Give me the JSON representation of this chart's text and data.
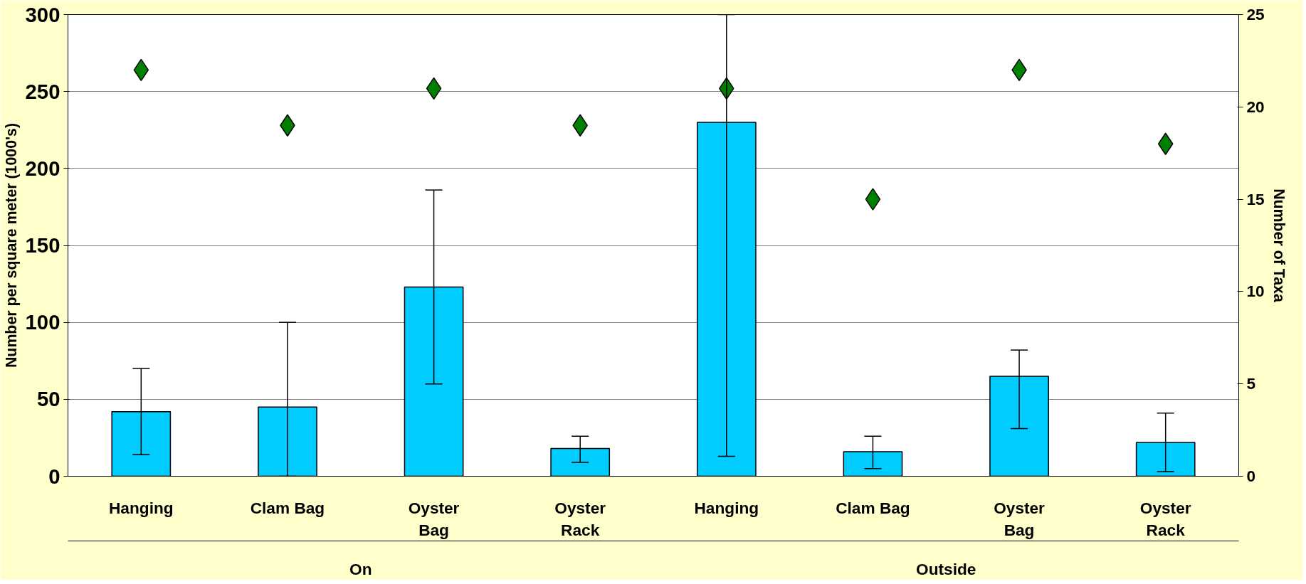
{
  "chart_data": {
    "type": "bar",
    "categories": [
      "Hanging",
      "Clam Bag",
      "Oyster\nBag",
      "Oyster\nRack",
      "Hanging",
      "Clam Bag",
      "Oyster\nBag",
      "Oyster\nRack"
    ],
    "series": [
      {
        "color": "#00ccff",
        "values": [
          42,
          45,
          123,
          18,
          230,
          16,
          65,
          22
        ],
        "errors": [
          [
            14,
            70
          ],
          [
            0,
            100
          ],
          [
            60,
            186
          ],
          [
            9,
            26
          ],
          [
            13,
            300
          ],
          [
            5,
            26
          ],
          [
            31,
            82
          ],
          [
            3,
            41
          ]
        ]
      },
      {
        "type": "scatter",
        "axis": "y2",
        "color": "#008000",
        "marker": "diamond",
        "values": [
          22,
          19,
          21,
          19,
          21,
          15,
          22,
          18
        ]
      }
    ],
    "annotations": [
      "On",
      "Outside"
    ],
    "ylabel": "Number per square meter (1000's)",
    "y2label": "Number of Taxa",
    "ylim": [
      0,
      300
    ],
    "yticks": [
      0,
      50,
      100,
      150,
      200,
      250,
      300
    ],
    "y2lim": [
      0,
      25
    ],
    "y2ticks": [
      0,
      5,
      10,
      15,
      20,
      25
    ],
    "grid": "y"
  }
}
